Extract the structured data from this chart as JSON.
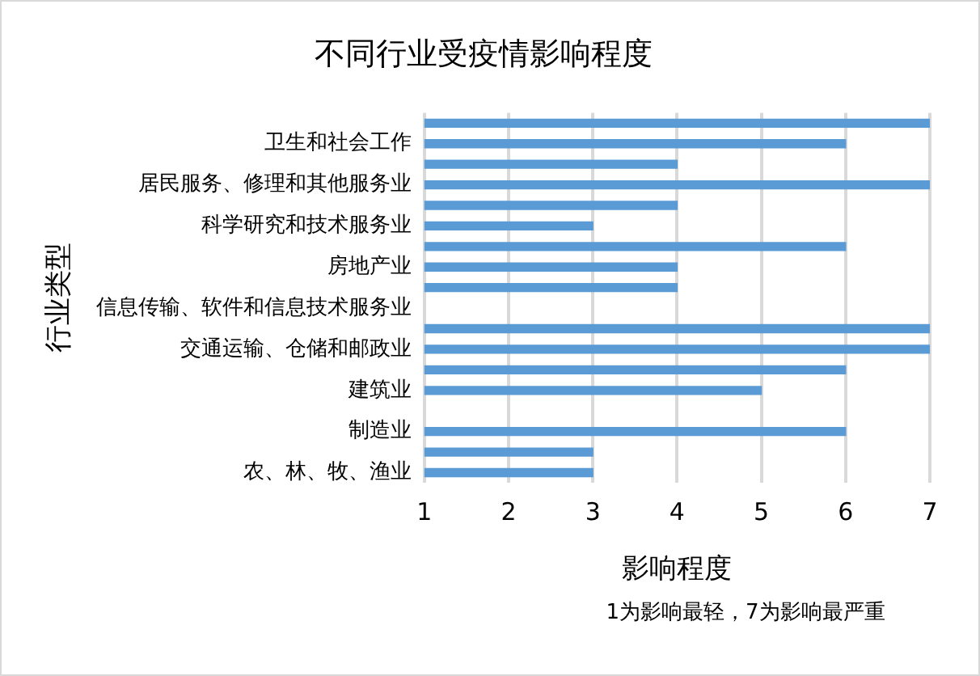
{
  "chart_data": {
    "type": "bar",
    "orientation": "horizontal",
    "title": "不同行业受疫情影响程度",
    "xlabel": "影响程度",
    "ylabel": "行业类型",
    "categories": [
      null,
      "卫生和社会工作",
      null,
      "居民服务、修理和其他服务业",
      null,
      "科学研究和技术服务业",
      null,
      "房地产业",
      null,
      "信息传输、软件和信息技术服务业",
      null,
      "交通运输、仓储和邮政业",
      null,
      "建筑业",
      null,
      "制造业",
      null,
      "农、林、牧、渔业"
    ],
    "values": [
      7,
      6,
      4,
      7,
      4,
      3,
      6,
      4,
      4,
      null,
      7,
      7,
      6,
      5,
      null,
      6,
      3,
      3
    ],
    "color": "#5b9bd5",
    "xlim": [
      1,
      7
    ],
    "xticks": [
      1,
      2,
      3,
      4,
      5,
      6,
      7
    ],
    "grid": "x",
    "legend": false,
    "annotations": [
      "1为影响最轻，7为影响最严重"
    ]
  }
}
